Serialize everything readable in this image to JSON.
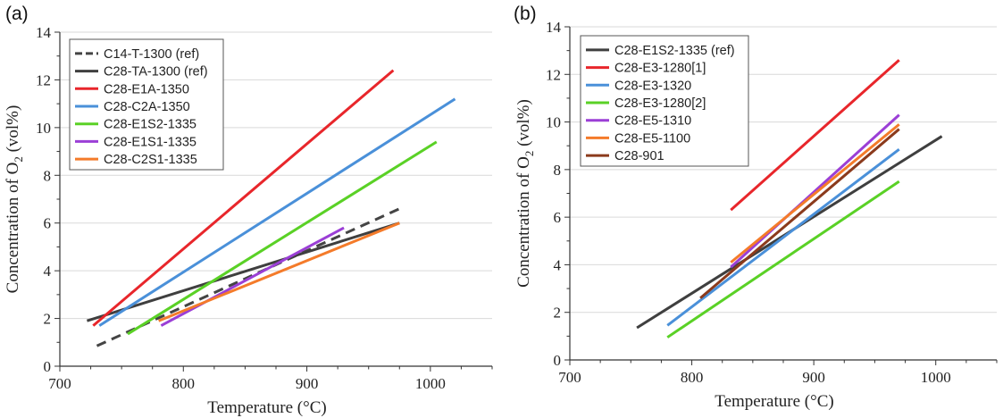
{
  "chart_data": [
    {
      "type": "line",
      "panel_label": "(a)",
      "xlabel": "Temperature (°C)",
      "ylabel_main": "Concentration of O",
      "ylabel_sub": "2",
      "ylabel_tail": " (vol%)",
      "xlim": [
        700,
        1050
      ],
      "ylim": [
        0,
        14
      ],
      "xticks": [
        700,
        800,
        900,
        1000
      ],
      "yticks": [
        0,
        2,
        4,
        6,
        8,
        10,
        12,
        14
      ],
      "grid": true,
      "legend_position": "top-left",
      "series": [
        {
          "name": "C14-T-1300 (ref)",
          "color": "#444444",
          "dashed": true,
          "x": [
            730,
            975
          ],
          "y": [
            0.85,
            6.6
          ]
        },
        {
          "name": "C28-TA-1300 (ref)",
          "color": "#3f3f3f",
          "dashed": false,
          "x": [
            722,
            975
          ],
          "y": [
            1.9,
            6.0
          ]
        },
        {
          "name": "C28-E1A-1350",
          "color": "#e8262b",
          "dashed": false,
          "x": [
            727,
            970
          ],
          "y": [
            1.7,
            12.4
          ]
        },
        {
          "name": "C28-C2A-1350",
          "color": "#4a90d9",
          "dashed": false,
          "x": [
            732,
            1020
          ],
          "y": [
            1.7,
            11.2
          ]
        },
        {
          "name": "C28-E1S2-1335",
          "color": "#5ad126",
          "dashed": false,
          "x": [
            755,
            1005
          ],
          "y": [
            1.35,
            9.4
          ]
        },
        {
          "name": "C28-E1S1-1335",
          "color": "#9b3fd6",
          "dashed": false,
          "x": [
            782,
            930
          ],
          "y": [
            1.7,
            5.8
          ]
        },
        {
          "name": "C28-C2S1-1335",
          "color": "#f47b2a",
          "dashed": false,
          "x": [
            780,
            975
          ],
          "y": [
            1.9,
            6.0
          ]
        }
      ]
    },
    {
      "type": "line",
      "panel_label": "(b)",
      "xlabel": "Temperature (°C)",
      "ylabel_main": "Concentration of O",
      "ylabel_sub": "2",
      "ylabel_tail": " (vol%)",
      "xlim": [
        700,
        1050
      ],
      "ylim": [
        0,
        14
      ],
      "xticks": [
        700,
        800,
        900,
        1000
      ],
      "yticks": [
        0,
        2,
        4,
        6,
        8,
        10,
        12,
        14
      ],
      "grid": true,
      "legend_position": "top-left",
      "series": [
        {
          "name": "C28-E1S2-1335 (ref)",
          "color": "#3f3f3f",
          "dashed": false,
          "x": [
            755,
            1005
          ],
          "y": [
            1.35,
            9.4
          ]
        },
        {
          "name": "C28-E3-1280[1]",
          "color": "#e8262b",
          "dashed": false,
          "x": [
            832,
            970
          ],
          "y": [
            6.3,
            12.6
          ]
        },
        {
          "name": "C28-E3-1320",
          "color": "#4a90d9",
          "dashed": false,
          "x": [
            780,
            970
          ],
          "y": [
            1.45,
            8.85
          ]
        },
        {
          "name": "C28-E3-1280[2]",
          "color": "#5ad126",
          "dashed": false,
          "x": [
            780,
            970
          ],
          "y": [
            0.95,
            7.5
          ]
        },
        {
          "name": "C28-E5-1310",
          "color": "#9b3fd6",
          "dashed": false,
          "x": [
            832,
            970
          ],
          "y": [
            3.9,
            10.3
          ]
        },
        {
          "name": "C28-E5-1100",
          "color": "#f47b2a",
          "dashed": false,
          "x": [
            832,
            970
          ],
          "y": [
            4.1,
            9.9
          ]
        },
        {
          "name": "C28-901",
          "color": "#8b3a1c",
          "dashed": false,
          "x": [
            807,
            970
          ],
          "y": [
            2.6,
            9.7
          ]
        }
      ]
    }
  ]
}
